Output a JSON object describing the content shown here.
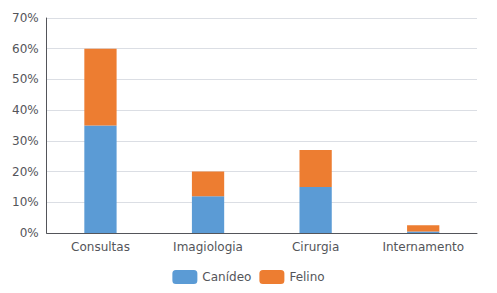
{
  "chart_data": {
    "type": "bar",
    "stacked": true,
    "categories": [
      "Consultas",
      "Imagiologia",
      "Cirurgia",
      "Internamento"
    ],
    "series": [
      {
        "name": "Canídeo",
        "color": "#5B9BD5",
        "values": [
          0.35,
          0.12,
          0.15,
          0.005
        ]
      },
      {
        "name": "Felino",
        "color": "#ED7D31",
        "values": [
          0.25,
          0.08,
          0.12,
          0.02
        ]
      }
    ],
    "ylim": [
      0,
      0.7
    ],
    "yticks": [
      {
        "value": 0.0,
        "label": "0%"
      },
      {
        "value": 0.1,
        "label": "10%"
      },
      {
        "value": 0.2,
        "label": "20%"
      },
      {
        "value": 0.3,
        "label": "30%"
      },
      {
        "value": 0.4,
        "label": "40%"
      },
      {
        "value": 0.5,
        "label": "50%"
      },
      {
        "value": 0.6,
        "label": "60%"
      },
      {
        "value": 0.7,
        "label": "70%"
      }
    ],
    "grid": true,
    "legend": "bottom"
  }
}
